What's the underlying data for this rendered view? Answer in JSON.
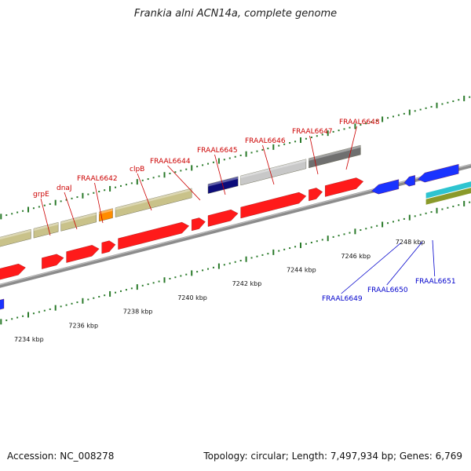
{
  "title": "Frankia alni ACN14a, complete genome",
  "footer": {
    "accession": "Accession: NC_008278",
    "stats": "Topology: circular; Length: 7,497,934 bp; Genes: 6,769"
  },
  "colors": {
    "forward_cds": "#ff1a1a",
    "reverse_cds": "#1a33ff",
    "forward_label": "#cc0000",
    "reverse_label": "#0000cc",
    "backbone": "#8c8c8c",
    "tick": "#2a7a2a"
  },
  "ruler": {
    "major_labels": [
      "7234 kbp",
      "7236 kbp",
      "7238 kbp",
      "7240 kbp",
      "7242 kbp",
      "7244 kbp",
      "7246 kbp",
      "7248 kbp"
    ],
    "major_kbp": [
      7234,
      7236,
      7238,
      7240,
      7242,
      7244,
      7246,
      7248
    ]
  },
  "forward_genes": [
    {
      "name": "grpE",
      "start_kbp": 7234.5,
      "end_kbp": 7235.3
    },
    {
      "name": "dnaJ",
      "start_kbp": 7235.4,
      "end_kbp": 7236.6
    },
    {
      "name": "FRAAL6642",
      "start_kbp": 7236.7,
      "end_kbp": 7237.2
    },
    {
      "name": "clpB",
      "start_kbp": 7237.3,
      "end_kbp": 7239.9
    },
    {
      "name": "FRAAL6644",
      "start_kbp": 7240.0,
      "end_kbp": 7240.5
    },
    {
      "name": "FRAAL6645",
      "start_kbp": 7240.6,
      "end_kbp": 7241.7
    },
    {
      "name": "FRAAL6646",
      "start_kbp": 7241.8,
      "end_kbp": 7244.2
    },
    {
      "name": "FRAAL6647",
      "start_kbp": 7244.3,
      "end_kbp": 7244.8
    },
    {
      "name": "FRAAL6648",
      "start_kbp": 7244.9,
      "end_kbp": 7246.3
    }
  ],
  "reverse_genes": [
    {
      "name": "FRAAL6649",
      "start_kbp": 7246.6,
      "end_kbp": 7247.6
    },
    {
      "name": "FRAAL6650",
      "start_kbp": 7248.0,
      "end_kbp": 7248.3
    },
    {
      "name": "FRAAL6651",
      "start_kbp": 7248.4,
      "end_kbp": 7249.7
    }
  ],
  "feature_bars": [
    {
      "kind": "khaki",
      "color": "#c9c28a",
      "start_kbp": 7232.3,
      "end_kbp": 7234.1
    },
    {
      "kind": "khaki",
      "color": "#c9c28a",
      "start_kbp": 7234.2,
      "end_kbp": 7235.1
    },
    {
      "kind": "khaki",
      "color": "#c9c28a",
      "start_kbp": 7235.2,
      "end_kbp": 7236.5
    },
    {
      "kind": "orange",
      "color": "#ff8c00",
      "start_kbp": 7236.6,
      "end_kbp": 7237.1
    },
    {
      "kind": "khaki",
      "color": "#c9c28a",
      "start_kbp": 7237.2,
      "end_kbp": 7240.0
    },
    {
      "kind": "navy",
      "color": "#0c0c7a",
      "start_kbp": 7240.6,
      "end_kbp": 7241.7
    },
    {
      "kind": "silver",
      "color": "#c8c8c8",
      "start_kbp": 7241.8,
      "end_kbp": 7244.2
    },
    {
      "kind": "gray",
      "color": "#6f6f6f",
      "start_kbp": 7244.3,
      "end_kbp": 7246.2
    }
  ],
  "lower_bars": [
    {
      "kind": "cyan",
      "color": "#2ec4d0",
      "start_kbp": 7248.6,
      "end_kbp": 7249.8
    },
    {
      "kind": "olive",
      "color": "#8a9a2a",
      "start_kbp": 7248.6,
      "end_kbp": 7249.8
    }
  ]
}
